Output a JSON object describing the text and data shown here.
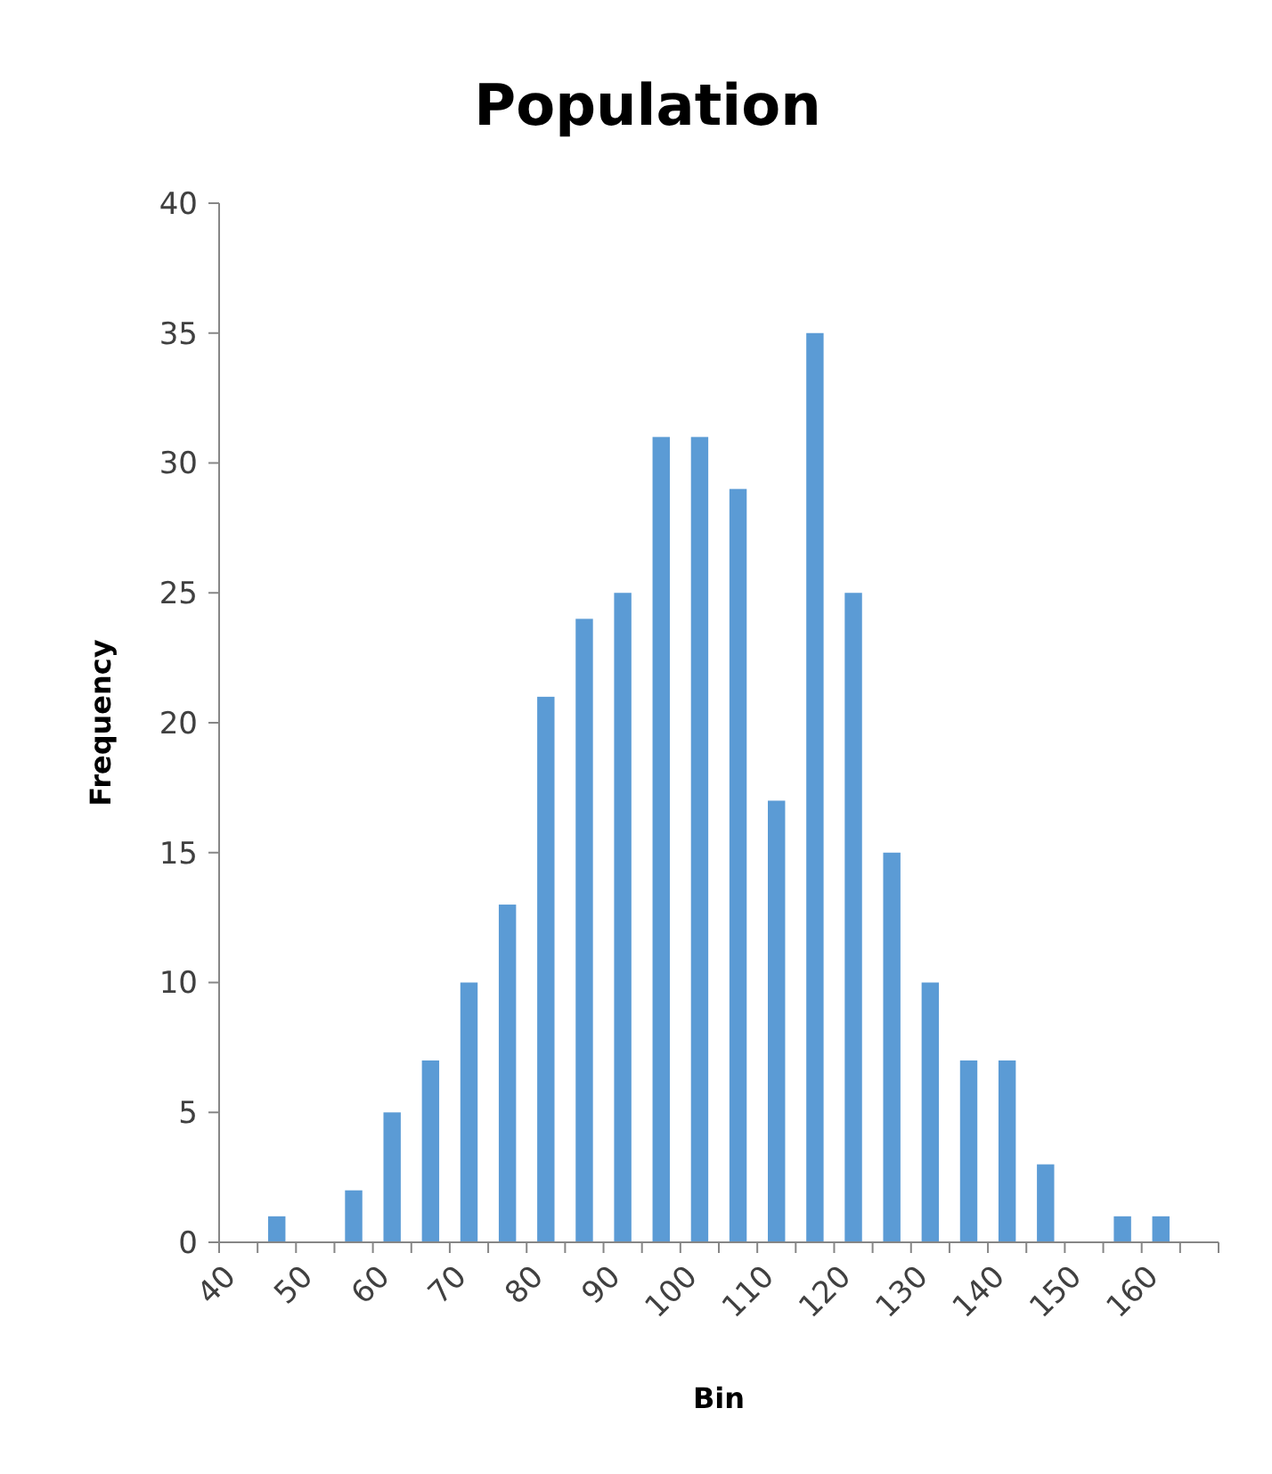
{
  "chart_data": {
    "type": "histogram",
    "title": "Population",
    "xlabel": "Bin",
    "ylabel": "Frequency",
    "bins": [
      40,
      45,
      50,
      55,
      60,
      65,
      70,
      75,
      80,
      85,
      90,
      95,
      100,
      105,
      110,
      115,
      120,
      125,
      130,
      135,
      140,
      145,
      150,
      155,
      160,
      165,
      170
    ],
    "values": [
      0,
      1,
      0,
      2,
      5,
      7,
      10,
      13,
      21,
      24,
      25,
      31,
      31,
      29,
      17,
      35,
      25,
      15,
      10,
      7,
      7,
      3,
      0,
      1,
      1,
      0
    ],
    "color": "#5b9bd5",
    "xlim": [
      40,
      170
    ],
    "xticks": [
      40,
      {
        "value": 45,
        "label": null
      },
      50,
      {
        "value": 55,
        "label": null
      },
      60,
      {
        "value": 65,
        "label": null
      },
      70,
      {
        "value": 75,
        "label": null
      },
      80,
      {
        "value": 85,
        "label": null
      },
      90,
      {
        "value": 95,
        "label": null
      },
      100,
      {
        "value": 105,
        "label": null
      },
      110,
      {
        "value": 115,
        "label": null
      },
      120,
      {
        "value": 125,
        "label": null
      },
      130,
      {
        "value": 135,
        "label": null
      },
      140,
      {
        "value": 145,
        "label": null
      },
      150,
      {
        "value": 155,
        "label": null
      },
      160,
      {
        "value": 165,
        "label": null
      },
      {
        "value": 170,
        "label": null
      }
    ],
    "ylim": [
      0,
      40
    ],
    "yticks": [
      0,
      5,
      10,
      15,
      20,
      25,
      30,
      35,
      40
    ],
    "grid": false
  }
}
